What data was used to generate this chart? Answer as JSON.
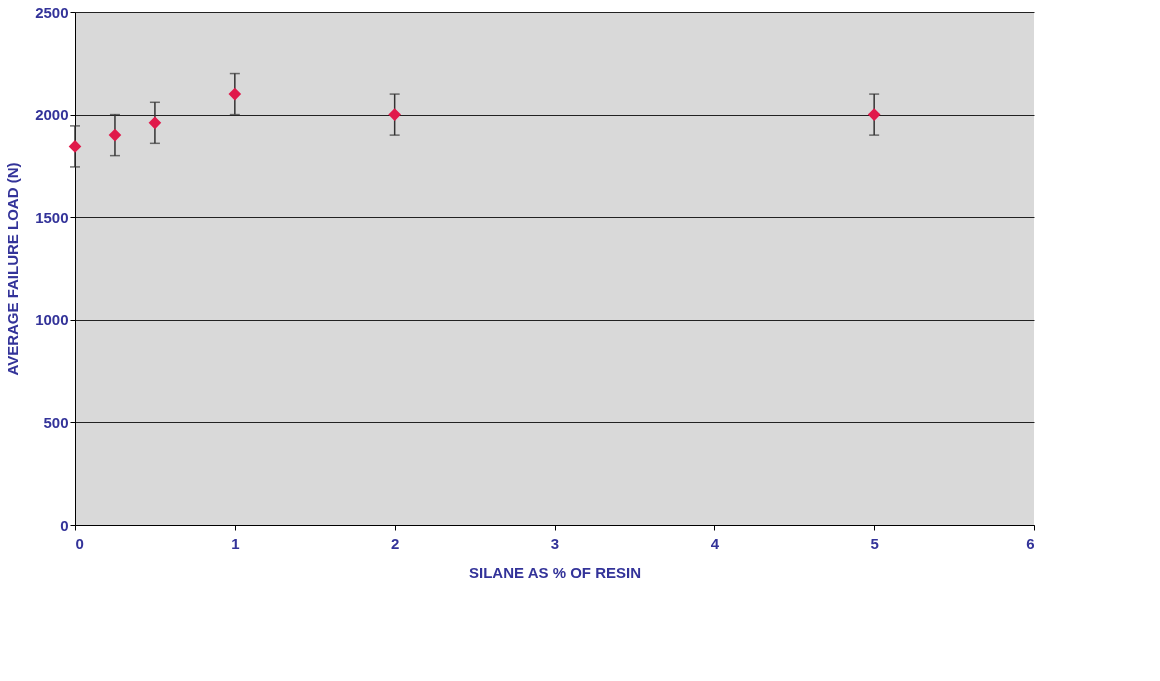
{
  "chart_data": {
    "type": "scatter",
    "xlabel": "SILANE AS % OF RESIN",
    "ylabel": "AVERAGE FAILURE LOAD (N)",
    "x": [
      0,
      0.25,
      0.5,
      1,
      2,
      5
    ],
    "series": [
      {
        "color": "#e0194a",
        "values": [
          1845,
          1900,
          1960,
          2100,
          2000,
          2000
        ],
        "errors": [
          100,
          100,
          100,
          100,
          100,
          100
        ]
      }
    ],
    "marker": "diamond",
    "xlim": [
      0,
      6
    ],
    "xticks": [
      0,
      1,
      2,
      3,
      4,
      5,
      6
    ],
    "ylim": [
      0,
      2500
    ],
    "yticks": [
      0,
      500,
      1000,
      1500,
      2000,
      2500
    ],
    "grid": "y"
  }
}
